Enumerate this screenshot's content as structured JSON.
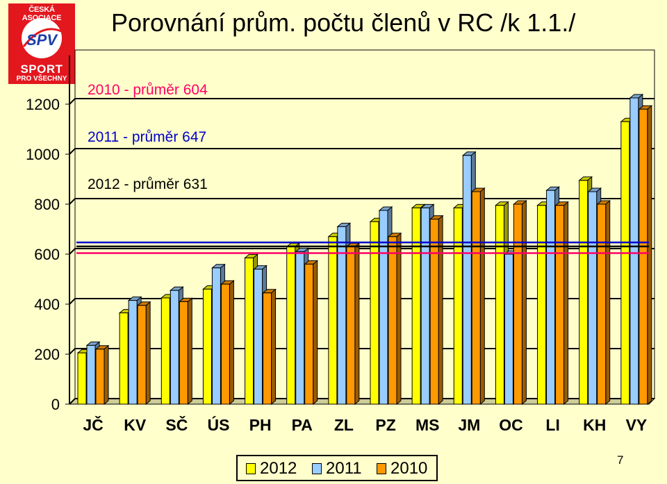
{
  "logo": {
    "top_text": "ČESKÁ ASOCIACE",
    "emblem_text": "SPV",
    "bottom_text_1": "SPORT",
    "bottom_text_2": "PRO VŠECHNY",
    "color": "#e3171e"
  },
  "title": "Porovnání prům. počtu členů v RC /k 1.1./",
  "page_number": "7",
  "annotations": [
    {
      "text": "2010 - průměr 604",
      "color": "#ff0066"
    },
    {
      "text": "2011 - průměr 647",
      "color": "#0000cc"
    },
    {
      "text": "2012 - průměr 631",
      "color": "#000000"
    }
  ],
  "chart_data": {
    "type": "bar",
    "categories": [
      "JČ",
      "KV",
      "SČ",
      "ÚS",
      "PH",
      "PA",
      "ZL",
      "PZ",
      "MS",
      "JM",
      "OC",
      "LI",
      "KH",
      "VY"
    ],
    "series": [
      {
        "name": "2012",
        "color": "#ffff00",
        "values": [
          205,
          365,
          425,
          460,
          585,
          630,
          670,
          730,
          785,
          785,
          795,
          795,
          895,
          1130
        ]
      },
      {
        "name": "2011",
        "color": "#99ccff",
        "values": [
          235,
          415,
          455,
          545,
          540,
          610,
          710,
          775,
          785,
          995,
          600,
          855,
          850,
          1225
        ]
      },
      {
        "name": "2010",
        "color": "#ff9900",
        "values": [
          220,
          395,
          410,
          480,
          445,
          560,
          630,
          670,
          740,
          850,
          800,
          795,
          800,
          1180
        ]
      }
    ],
    "averages": [
      {
        "series": "2010",
        "value": 604,
        "color": "#ff0066"
      },
      {
        "series": "2011",
        "value": 647,
        "color": "#0000cc"
      },
      {
        "series": "2012",
        "value": 631,
        "color": "#000000"
      }
    ],
    "yticks": [
      "0",
      "200",
      "400",
      "600",
      "800",
      "1000",
      "1200"
    ],
    "ylim": [
      0,
      1200
    ],
    "grid": true,
    "legend_position": "bottom"
  }
}
